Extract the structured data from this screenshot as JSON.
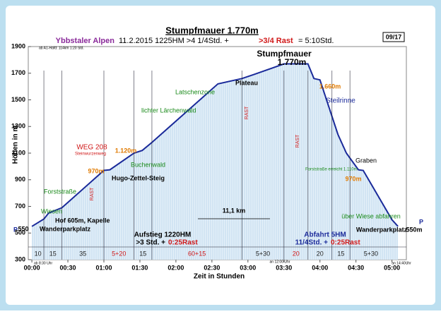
{
  "header": {
    "title": "Stumpfmauer 1.770m",
    "region": "Ybbstaler Alpen",
    "info": "11.2.2015  1225HM  >4 1/4Std. +",
    "rest": ">3/4 Rast",
    "total": "=  5:10Std.",
    "badge": "09/17"
  },
  "chart_data": {
    "type": "line",
    "xlabel": "Zeit in Stunden",
    "ylabel": "Höhen in m",
    "x": [
      0,
      10,
      14,
      25,
      60,
      65,
      85,
      92,
      100,
      125,
      155,
      170,
      175,
      185,
      210,
      230,
      235,
      240,
      255,
      262,
      272,
      276,
      300,
      305
    ],
    "values": [
      550,
      605,
      650,
      690,
      970,
      975,
      1100,
      1120,
      1180,
      1380,
      1620,
      1650,
      1660,
      1690,
      1770,
      1770,
      1660,
      1650,
      1240,
      1100,
      975,
      970,
      600,
      550
    ],
    "color": "#1a2a9a",
    "fill": "#d8eaf6",
    "xlim": [
      -3,
      312
    ],
    "ylim": [
      300,
      1900
    ],
    "xticks": [
      {
        "value": 0,
        "label": "00:00"
      },
      {
        "value": 30,
        "label": "00:30"
      },
      {
        "value": 60,
        "label": "01:00"
      },
      {
        "value": 90,
        "label": "01:30"
      },
      {
        "value": 120,
        "label": "02:00"
      },
      {
        "value": 150,
        "label": "02:30"
      },
      {
        "value": 180,
        "label": "03:00"
      },
      {
        "value": 210,
        "label": "03:30"
      },
      {
        "value": 240,
        "label": "04:00"
      },
      {
        "value": 270,
        "label": "04:30"
      },
      {
        "value": 300,
        "label": "05:00"
      }
    ],
    "yticks": [
      300,
      500,
      700,
      900,
      1100,
      1300,
      1500,
      1700,
      1900
    ],
    "segments": [
      "10",
      "15",
      "35",
      "5+20",
      "15",
      "60+15",
      "5+30",
      "20",
      "20",
      "15",
      "5+30"
    ],
    "annotations": [
      "Wiesen",
      "Forststraße",
      "Hof 605m, Kapelle",
      "Wanderparkplatz",
      "WEG 208",
      "Steinwurzenweg",
      "970m",
      "Hugo-Zettel-Steig",
      "1.120m",
      "Buchenwald",
      "lichter Lärchenwald",
      "Latschenzone",
      "Plateau",
      "Stumpfmauer",
      "1.770m",
      "1.660m",
      "Steilrinne",
      "Graben",
      "970m",
      "Forststraße erreicht 1.110m",
      "über Wiese abfahren",
      "Wanderparkplatz",
      "11,1 km",
      "RAST",
      "RAST",
      "RAST",
      "550",
      "550m",
      "P",
      "P",
      "ab A1-Hafd: 114km 1:20 Std.",
      "ab 8:30 Uhr",
      "an 12:00 Uhr",
      "an 14:40Uhr"
    ],
    "summary": {
      "up": "Aufstieg 1220HM",
      "up_time": ">3 Std. +",
      "up_rest": "0:25Rast",
      "down": "Abfahrt 5HM",
      "down_time": "11/4Std. +",
      "down_rest": "0:25Rast"
    }
  }
}
